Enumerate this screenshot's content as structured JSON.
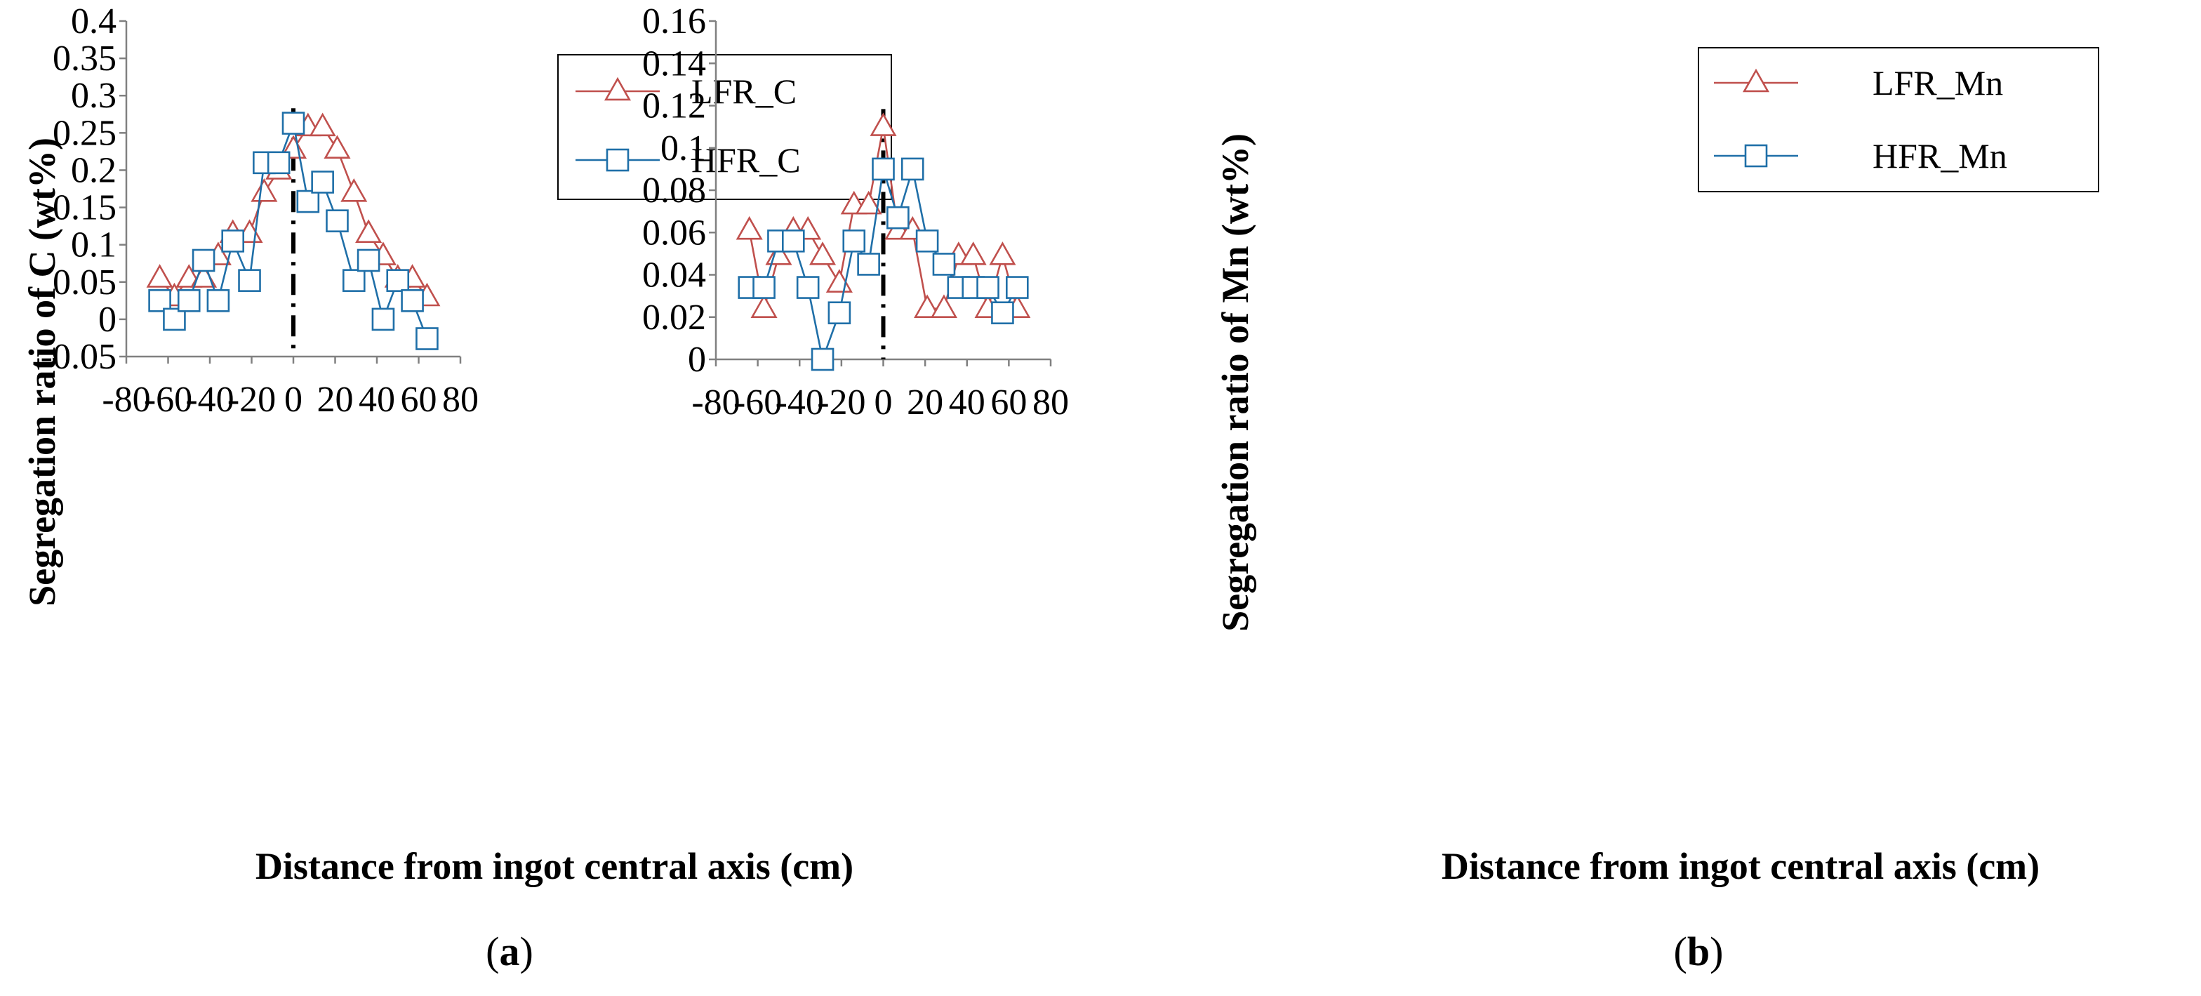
{
  "chart_data": [
    {
      "type": "line",
      "panel": "a",
      "caption_open": "(",
      "caption_letter": "a",
      "caption_close": ")",
      "xlabel": "Distance from ingot central axis (cm)",
      "ylabel": "Segregation ratio of C (wt%)",
      "xlim": [
        -80,
        80
      ],
      "ylim": [
        -0.05,
        0.4
      ],
      "xticks": [
        "-80",
        "-60",
        "-40",
        "-20",
        "0",
        "20",
        "40",
        "60",
        "80"
      ],
      "yticks": [
        "-0.05",
        "0",
        "0.05",
        "0.1",
        "0.15",
        "0.2",
        "0.25",
        "0.3",
        "0.35",
        "0.4"
      ],
      "legend_position": "top-right",
      "center_line_x": 0,
      "series": [
        {
          "name": "LFR_C",
          "color": "#c0504d",
          "marker": "triangle",
          "x": [
            -64,
            -57,
            -50,
            -43,
            -36,
            -29,
            -21,
            -14,
            -7,
            0,
            7,
            14,
            21,
            29,
            36,
            43,
            50,
            57,
            64
          ],
          "y": [
            0.055,
            0.03,
            0.055,
            0.055,
            0.085,
            0.115,
            0.115,
            0.17,
            0.2,
            0.228,
            0.258,
            0.258,
            0.228,
            0.17,
            0.115,
            0.085,
            0.055,
            0.055,
            0.03
          ]
        },
        {
          "name": "HFR_C",
          "color": "#1f6fa8",
          "marker": "square",
          "x": [
            -64,
            -57,
            -50,
            -43,
            -36,
            -29,
            -21,
            -14,
            -7,
            0,
            7,
            14,
            21,
            29,
            36,
            43,
            50,
            57,
            64
          ],
          "y": [
            0.025,
            0.0,
            0.025,
            0.079,
            0.025,
            0.105,
            0.052,
            0.21,
            0.21,
            0.263,
            0.158,
            0.184,
            0.132,
            0.052,
            0.079,
            0.0,
            0.052,
            0.025,
            -0.026
          ]
        }
      ]
    },
    {
      "type": "line",
      "panel": "b",
      "caption_open": "(",
      "caption_letter": "b",
      "caption_close": ")",
      "xlabel": "Distance from ingot central axis (cm)",
      "ylabel": "Segregation ratio of Mn (wt%)",
      "xlim": [
        -80,
        80
      ],
      "ylim": [
        0,
        0.16
      ],
      "xticks": [
        "-80",
        "-60",
        "-40",
        "-20",
        "0",
        "20",
        "40",
        "60",
        "80"
      ],
      "yticks": [
        "0",
        "0.02",
        "0.04",
        "0.06",
        "0.08",
        "0.1",
        "0.12",
        "0.14",
        "0.16"
      ],
      "legend_position": "top-right",
      "center_line_x": 0,
      "series": [
        {
          "name": "LFR_Mn",
          "color": "#c0504d",
          "marker": "triangle",
          "x": [
            -64,
            -57,
            -50,
            -43,
            -36,
            -29,
            -21,
            -14,
            -7,
            0,
            7,
            14,
            21,
            29,
            36,
            43,
            50,
            57,
            64
          ],
          "y": [
            0.061,
            0.024,
            0.049,
            0.061,
            0.061,
            0.049,
            0.036,
            0.073,
            0.073,
            0.11,
            0.061,
            0.061,
            0.024,
            0.024,
            0.049,
            0.049,
            0.024,
            0.049,
            0.024
          ]
        },
        {
          "name": "HFR_Mn",
          "color": "#1f6fa8",
          "marker": "square",
          "x": [
            -64,
            -57,
            -50,
            -43,
            -36,
            -29,
            -21,
            -14,
            -7,
            0,
            7,
            14,
            21,
            29,
            36,
            43,
            50,
            57,
            64
          ],
          "y": [
            0.034,
            0.034,
            0.056,
            0.056,
            0.034,
            0.0,
            0.022,
            0.056,
            0.045,
            0.09,
            0.067,
            0.09,
            0.056,
            0.045,
            0.034,
            0.034,
            0.034,
            0.022,
            0.034
          ]
        }
      ]
    }
  ]
}
